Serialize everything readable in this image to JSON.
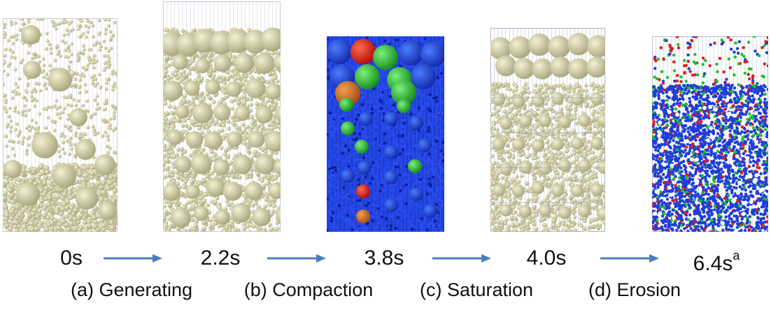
{
  "timeline": [
    {
      "time": "0s"
    },
    {
      "time": "2.2s"
    },
    {
      "time": "3.8s"
    },
    {
      "time": "4.0s"
    },
    {
      "time": "6.4s",
      "sup": "a"
    }
  ],
  "stages": [
    {
      "label": "(a) Generating"
    },
    {
      "label": "(b) Compaction"
    },
    {
      "label": "(c) Saturation"
    },
    {
      "label": "(d) Erosion"
    }
  ],
  "colors": {
    "particle": "#d8d6aa",
    "particle_shade": "#a8a47c",
    "wire": "#c8cad6",
    "arrow": "#4a7cc0",
    "fluid_blue": "#1e3ed8",
    "high_red": "#e11a1a",
    "mid_green": "#1ec02a",
    "orange": "#d0701c"
  }
}
